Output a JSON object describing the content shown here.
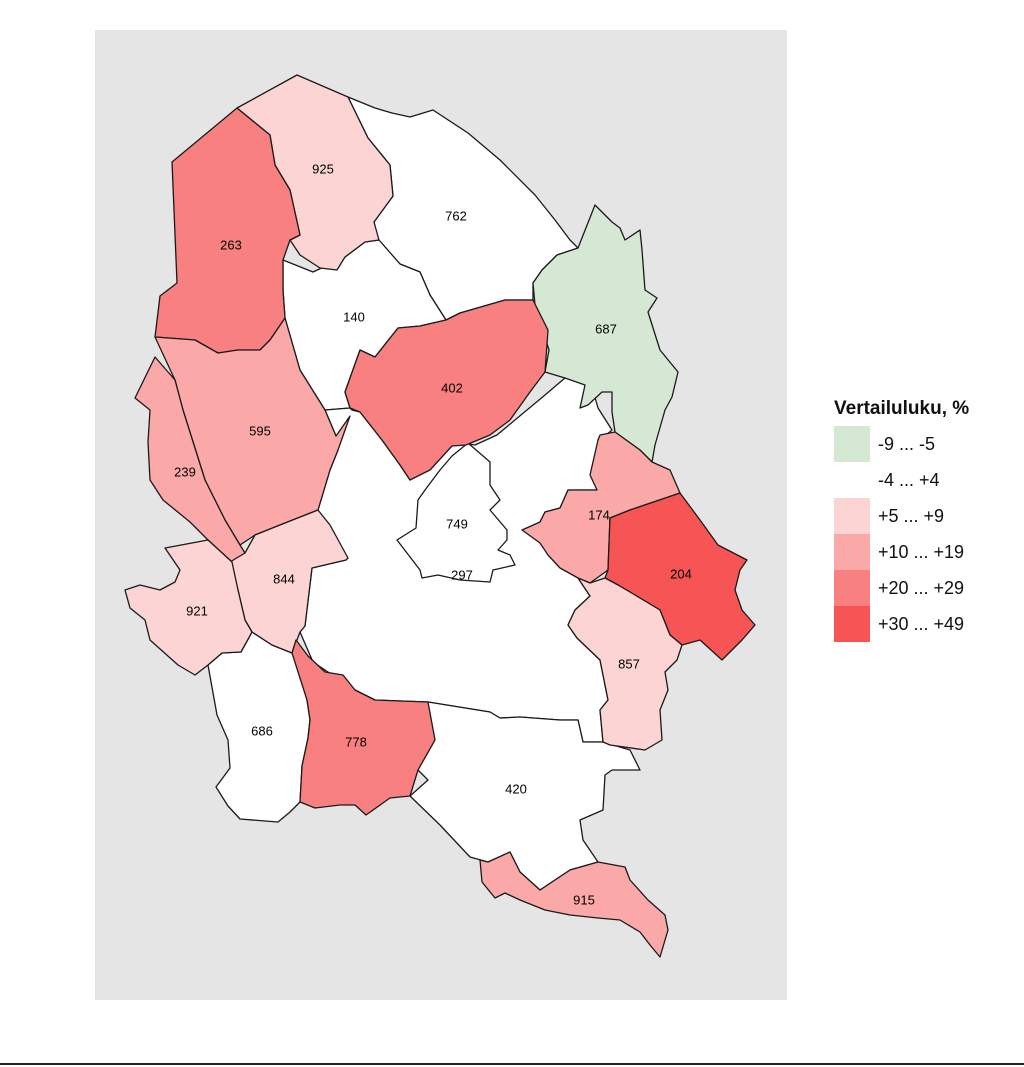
{
  "map": {
    "background": "#e5e5e5",
    "regions": [
      {
        "id": "r925",
        "label": "925",
        "cls": 1
      },
      {
        "id": "r263",
        "label": "263",
        "cls": 3
      },
      {
        "id": "r762",
        "label": "762",
        "cls": 0
      },
      {
        "id": "r140",
        "label": "140",
        "cls": 0
      },
      {
        "id": "r687",
        "label": "687",
        "cls": -1
      },
      {
        "id": "r402",
        "label": "402",
        "cls": 3
      },
      {
        "id": "r595",
        "label": "595",
        "cls": 2
      },
      {
        "id": "r239",
        "label": "239",
        "cls": 2
      },
      {
        "id": "r749",
        "label": "749",
        "cls": 0
      },
      {
        "id": "r297",
        "label": "297",
        "cls": 0
      },
      {
        "id": "r174",
        "label": "174",
        "cls": 2
      },
      {
        "id": "r204",
        "label": "204",
        "cls": 4
      },
      {
        "id": "r844",
        "label": "844",
        "cls": 1
      },
      {
        "id": "r921",
        "label": "921",
        "cls": 1
      },
      {
        "id": "r857",
        "label": "857",
        "cls": 1
      },
      {
        "id": "r686",
        "label": "686",
        "cls": 0
      },
      {
        "id": "r778",
        "label": "778",
        "cls": 3
      },
      {
        "id": "r420",
        "label": "420",
        "cls": 0
      },
      {
        "id": "r915",
        "label": "915",
        "cls": 2
      }
    ]
  },
  "legend": {
    "title": "Vertailuluku, %",
    "items": [
      {
        "cls": -1,
        "label": "-9 ... -5",
        "color": "#d5e8d4"
      },
      {
        "cls": 0,
        "label": "-4 ... +4",
        "color": "#ffffff"
      },
      {
        "cls": 1,
        "label": "+5 ... +9",
        "color": "#fcd4d4"
      },
      {
        "cls": 2,
        "label": "+10 ... +19",
        "color": "#fba8a8"
      },
      {
        "cls": 3,
        "label": "+20 ... +29",
        "color": "#f88080"
      },
      {
        "cls": 4,
        "label": "+30 ... +49",
        "color": "#f75555"
      }
    ]
  }
}
